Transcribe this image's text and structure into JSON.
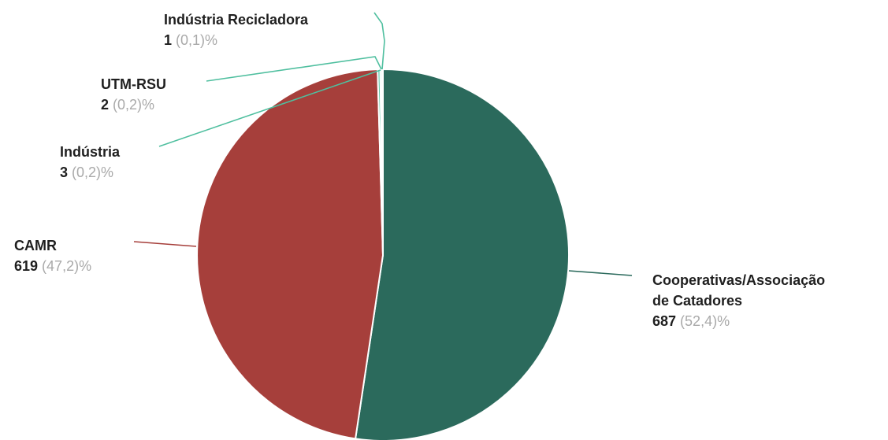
{
  "chart_data": {
    "type": "pie",
    "slices": [
      {
        "key": "cooperativas",
        "name_lines": [
          "Cooperativas/Associação",
          "de Catadores"
        ],
        "value": 687,
        "pct_text": "(52,4)",
        "pct_suffix": "%",
        "color": "#2b6a5c",
        "leader_color": "#2b6a5c"
      },
      {
        "key": "camr",
        "name_lines": [
          "CAMR"
        ],
        "value": 619,
        "pct_text": "(47,2)",
        "pct_suffix": "%",
        "color": "#a63f3b",
        "leader_color": "#a63f3b"
      },
      {
        "key": "industria",
        "name_lines": [
          "Indústria"
        ],
        "value": 3,
        "pct_text": "(0,2)",
        "pct_suffix": "%",
        "color": "#5cc7a8",
        "leader_color": "#4fbf9f"
      },
      {
        "key": "utm-rsu",
        "name_lines": [
          "UTM-RSU"
        ],
        "value": 2,
        "pct_text": "(0,2)",
        "pct_suffix": "%",
        "color": "#5cc7a8",
        "leader_color": "#4fbf9f"
      },
      {
        "key": "industria-recicladora",
        "name_lines": [
          "Indústria Recicladora"
        ],
        "value": 1,
        "pct_text": "(0,1)",
        "pct_suffix": "%",
        "color": "#5cc7a8",
        "leader_color": "#4fbf9f"
      }
    ],
    "start_angle": "top",
    "direction": "clockwise",
    "legend": "none"
  }
}
